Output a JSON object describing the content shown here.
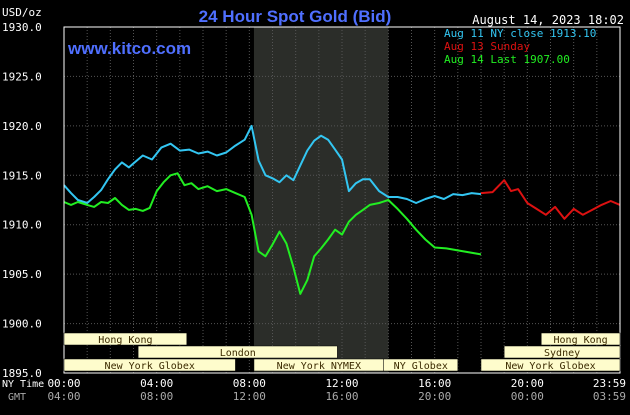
{
  "header": {
    "unit_label": "USD/oz",
    "title": "24 Hour Spot Gold (Bid)",
    "timestamp": "August 14, 2023 18:02",
    "brand": "www.kitco.com"
  },
  "colors": {
    "background": "#000000",
    "grid": "#555555",
    "title": "#4f6fff",
    "brand": "#4f6fff",
    "text": "#ffffff",
    "series_aug11": "#33c6f2",
    "series_aug13": "#dd1111",
    "series_aug14": "#22ee22",
    "market_bar_fill": "#fefccc",
    "market_bar_text": "#3b2a00",
    "shade": "#2b2d29"
  },
  "chart_data": {
    "type": "line",
    "title": "24 Hour Spot Gold (Bid)",
    "ylabel": "USD/oz",
    "ylim": [
      1895,
      1930
    ],
    "yticks": [
      "1930.0",
      "1925.0",
      "1920.0",
      "1915.0",
      "1910.0",
      "1905.0",
      "1900.0",
      "1895.0"
    ],
    "ytick_values": [
      1930,
      1925,
      1920,
      1915,
      1910,
      1905,
      1900,
      1895
    ],
    "xlim": [
      0,
      24
    ],
    "x_unit": "hours (NY time)",
    "grid": true,
    "legend_position": "top-right",
    "legend": [
      {
        "label": "Aug 11 NY close 1913.10",
        "series": "aug11"
      },
      {
        "label": "Aug 13 Sunday",
        "series": "aug13"
      },
      {
        "label": "Aug 14 Last 1907.00",
        "series": "aug14"
      }
    ],
    "x_axis_ny": {
      "label": "NY Time",
      "ticks": [
        "00:00",
        "04:00",
        "08:00",
        "12:00",
        "16:00",
        "20:00",
        "23:59"
      ],
      "tick_values": [
        0,
        4,
        8,
        12,
        16,
        20,
        24
      ]
    },
    "x_axis_gmt": {
      "label": "GMT",
      "ticks": [
        "04:00",
        "08:00",
        "12:00",
        "16:00",
        "20:00",
        "00:00",
        "03:59"
      ]
    },
    "shaded_region": [
      8.2,
      14.0
    ],
    "series": [
      {
        "name": "Aug 11 NY close 1913.10",
        "key": "aug11",
        "x": [
          0,
          0.3,
          0.6,
          1.0,
          1.3,
          1.6,
          1.9,
          2.2,
          2.5,
          2.8,
          3.0,
          3.4,
          3.8,
          4.2,
          4.6,
          5.0,
          5.4,
          5.8,
          6.2,
          6.6,
          7.0,
          7.4,
          7.8,
          8.1,
          8.4,
          8.7,
          9.0,
          9.3,
          9.6,
          9.9,
          10.2,
          10.5,
          10.8,
          11.1,
          11.4,
          11.7,
          12.0,
          12.3,
          12.6,
          12.9,
          13.2,
          13.6,
          14.0,
          14.4,
          14.8,
          15.2,
          15.6,
          16.0,
          16.4,
          16.8,
          17.2,
          17.6,
          18.0
        ],
        "y": [
          1914.0,
          1913.2,
          1912.5,
          1912.2,
          1912.8,
          1913.5,
          1914.6,
          1915.6,
          1916.3,
          1915.8,
          1916.2,
          1917.0,
          1916.6,
          1917.8,
          1918.2,
          1917.5,
          1917.6,
          1917.2,
          1917.4,
          1917.0,
          1917.3,
          1918.0,
          1918.6,
          1920.0,
          1916.5,
          1915.0,
          1914.7,
          1914.3,
          1915.0,
          1914.5,
          1916.0,
          1917.5,
          1918.5,
          1919.0,
          1918.6,
          1917.6,
          1916.6,
          1913.4,
          1914.2,
          1914.6,
          1914.6,
          1913.4,
          1912.8,
          1912.8,
          1912.6,
          1912.2,
          1912.6,
          1912.9,
          1912.6,
          1913.1,
          1913.0,
          1913.2,
          1913.1
        ]
      },
      {
        "name": "Aug 13 Sunday",
        "key": "aug13",
        "x": [
          18.0,
          18.5,
          19.0,
          19.3,
          19.6,
          20.0,
          20.4,
          20.8,
          21.2,
          21.6,
          22.0,
          22.4,
          22.8,
          23.2,
          23.6,
          24.0
        ],
        "y": [
          1913.2,
          1913.3,
          1914.5,
          1913.4,
          1913.6,
          1912.2,
          1911.6,
          1911.0,
          1911.8,
          1910.6,
          1911.6,
          1911.0,
          1911.5,
          1912.0,
          1912.4,
          1912.0
        ]
      },
      {
        "name": "Aug 14 Last 1907.00",
        "key": "aug14",
        "x": [
          0,
          0.3,
          0.6,
          1.0,
          1.3,
          1.6,
          1.9,
          2.2,
          2.5,
          2.8,
          3.1,
          3.4,
          3.7,
          4.0,
          4.3,
          4.6,
          4.9,
          5.2,
          5.5,
          5.8,
          6.2,
          6.6,
          7.0,
          7.4,
          7.8,
          8.1,
          8.4,
          8.7,
          9.0,
          9.3,
          9.6,
          9.9,
          10.2,
          10.5,
          10.8,
          11.1,
          11.4,
          11.7,
          12.0,
          12.3,
          12.6,
          12.9,
          13.2,
          13.6,
          14.0,
          14.4,
          14.8,
          15.2,
          15.6,
          16.0,
          16.5,
          17.0,
          17.5,
          18.0
        ],
        "y": [
          1912.3,
          1912.0,
          1912.3,
          1912.0,
          1911.8,
          1912.3,
          1912.2,
          1912.7,
          1912.0,
          1911.5,
          1911.6,
          1911.4,
          1911.7,
          1913.4,
          1914.3,
          1915.0,
          1915.2,
          1914.0,
          1914.2,
          1913.6,
          1913.9,
          1913.4,
          1913.6,
          1913.2,
          1912.8,
          1911.0,
          1907.3,
          1906.8,
          1908.0,
          1909.3,
          1908.1,
          1905.7,
          1903.0,
          1904.4,
          1906.8,
          1907.6,
          1908.5,
          1909.5,
          1909.0,
          1910.3,
          1911.0,
          1911.5,
          1912.0,
          1912.2,
          1912.5,
          1911.6,
          1910.6,
          1909.5,
          1908.5,
          1907.7,
          1907.6,
          1907.4,
          1907.2,
          1907.0
        ]
      }
    ],
    "market_bars": [
      {
        "label": "Hong Kong",
        "row": 0,
        "start": 0,
        "end": 5.3
      },
      {
        "label": "London",
        "row": 1,
        "start": 3.2,
        "end": 11.8
      },
      {
        "label": "New York Globex",
        "row": 2,
        "start": 0,
        "end": 7.4
      },
      {
        "label": "New York NYMEX",
        "row": 2,
        "start": 8.2,
        "end": 13.8
      },
      {
        "label": "NY Globex",
        "row": 2,
        "start": 13.8,
        "end": 17.0
      },
      {
        "label": "Hong Kong",
        "row": 0,
        "start": 20.6,
        "end": 24.0
      },
      {
        "label": "Sydney",
        "row": 1,
        "start": 19.0,
        "end": 24.0
      },
      {
        "label": "New York Globex",
        "row": 2,
        "start": 18.0,
        "end": 24.0
      }
    ]
  }
}
